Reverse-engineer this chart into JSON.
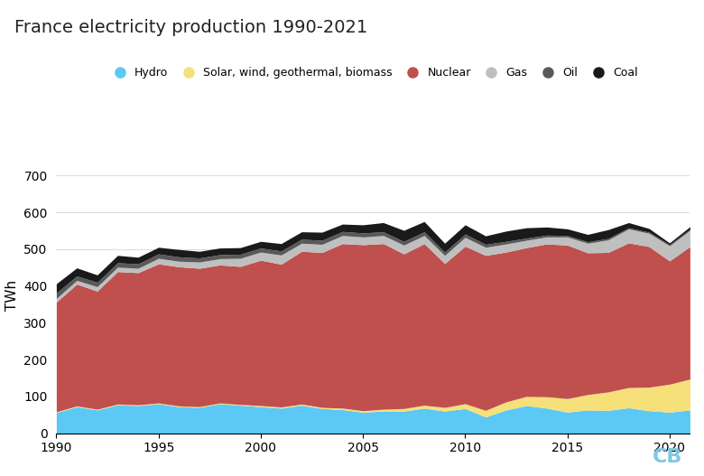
{
  "title": "France electricity production 1990-2021",
  "ylabel": "TWh",
  "years": [
    1990,
    1991,
    1992,
    1993,
    1994,
    1995,
    1996,
    1997,
    1998,
    1999,
    2000,
    2001,
    2002,
    2003,
    2004,
    2005,
    2006,
    2007,
    2008,
    2009,
    2010,
    2011,
    2012,
    2013,
    2014,
    2015,
    2016,
    2017,
    2018,
    2019,
    2020,
    2021
  ],
  "hydro": [
    56,
    72,
    63,
    77,
    75,
    80,
    72,
    70,
    80,
    76,
    72,
    68,
    76,
    67,
    64,
    57,
    60,
    60,
    68,
    60,
    67,
    44,
    63,
    75,
    68,
    57,
    63,
    62,
    69,
    61,
    57,
    63
  ],
  "solar_wind_geo_bio": [
    2,
    2,
    2,
    2,
    2,
    2,
    2,
    2,
    2,
    2,
    3,
    3,
    3,
    3,
    4,
    4,
    5,
    7,
    8,
    10,
    13,
    18,
    22,
    25,
    31,
    37,
    42,
    50,
    55,
    64,
    76,
    84
  ],
  "nuclear": [
    298,
    331,
    321,
    360,
    359,
    378,
    378,
    376,
    375,
    375,
    395,
    388,
    415,
    421,
    447,
    451,
    450,
    420,
    439,
    391,
    428,
    421,
    407,
    404,
    415,
    417,
    385,
    379,
    393,
    382,
    335,
    360
  ],
  "gas": [
    10,
    10,
    12,
    12,
    12,
    15,
    15,
    17,
    17,
    22,
    22,
    25,
    22,
    22,
    22,
    21,
    22,
    24,
    22,
    22,
    24,
    22,
    22,
    20,
    19,
    22,
    26,
    34,
    38,
    36,
    41,
    44
  ],
  "oil": [
    15,
    12,
    12,
    12,
    12,
    12,
    12,
    11,
    11,
    11,
    11,
    11,
    11,
    11,
    11,
    11,
    10,
    10,
    10,
    9,
    9,
    8,
    7,
    6,
    5,
    4,
    4,
    4,
    3,
    3,
    3,
    3
  ],
  "coal": [
    25,
    22,
    20,
    20,
    18,
    18,
    20,
    18,
    18,
    18,
    18,
    20,
    20,
    22,
    20,
    22,
    25,
    30,
    28,
    24,
    25,
    23,
    28,
    28,
    22,
    18,
    20,
    24,
    14,
    10,
    5,
    7
  ],
  "colors": {
    "hydro": "#5bc8f5",
    "solar_wind_geo_bio": "#f5e07a",
    "nuclear": "#c0504d",
    "gas": "#bfbfbf",
    "oil": "#595959",
    "coal": "#1a1a1a"
  },
  "legend_labels": [
    "Hydro",
    "Solar, wind, geothermal, biomass",
    "Nuclear",
    "Gas",
    "Oil",
    "Coal"
  ],
  "ylim": [
    0,
    750
  ],
  "yticks": [
    0,
    100,
    200,
    300,
    400,
    500,
    600,
    700
  ],
  "background_color": "#ffffff",
  "title_fontsize": 14,
  "label_fontsize": 11,
  "tick_fontsize": 10,
  "legend_fontsize": 9,
  "watermark_text": "CB",
  "watermark_color": "#7ec8e3"
}
